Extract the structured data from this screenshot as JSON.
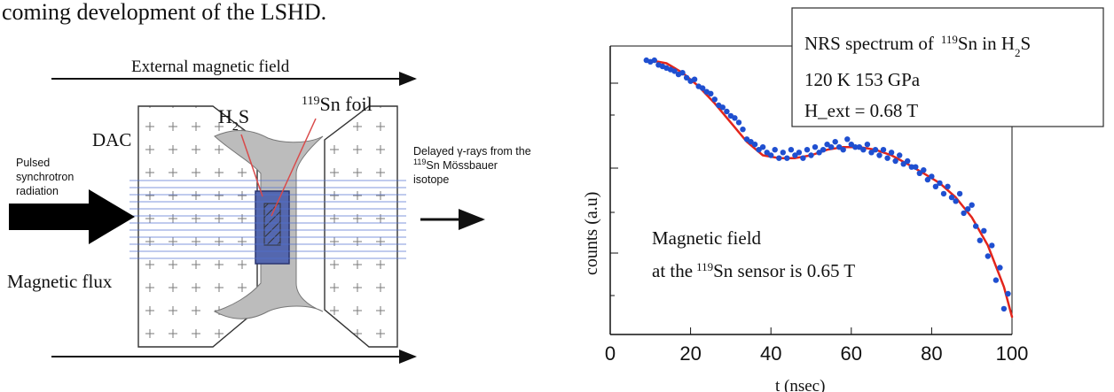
{
  "page_text": {
    "intro_fragment": "coming development of the LSHD."
  },
  "diagram": {
    "external_field_label": "External magnetic field",
    "sample_label_main": "H",
    "sample_label_sub": "2",
    "sample_label_end": "S",
    "foil_label_sup": "119",
    "foil_label_main": "Sn foil",
    "dac_label": "DAC",
    "source_line_1": "Pulsed",
    "source_line_2": "synchrotron",
    "source_line_3": "radiation",
    "delayed_line_1": "Delayed γ-rays from the",
    "delayed_line_2_sup": "119",
    "delayed_line_2_main": "Sn Mössbauer",
    "delayed_line_3": "isotope",
    "magnetic_flux_label": "Magnetic flux"
  },
  "inset_box": {
    "line1_prefix": "NRS spectrum of",
    "line1_sup": "119",
    "line1_mid": "Sn in H",
    "line1_sub": "2",
    "line1_end": "S",
    "line2": "120 K  153 GPa",
    "line3": "H_ext = 0.68 T"
  },
  "annotation": {
    "line1": "Magnetic field",
    "line2_prefix": "at the",
    "line2_sup": "119",
    "line2_suffix": "Sn sensor is 0.65 T"
  },
  "chart_data": {
    "type": "scatter",
    "xlabel": "t (nsec)",
    "ylabel": "counts (a.u)",
    "xlim": [
      0,
      100
    ],
    "y_scale": "log",
    "x_ticks": [
      0,
      20,
      40,
      60,
      80,
      100
    ],
    "x_tick_labels": [
      "0",
      "20",
      "40",
      "60",
      "80",
      "100"
    ],
    "colors": {
      "data": "#1f4fd0",
      "fit": "#e3251b"
    },
    "fit_curve": {
      "x": [
        10,
        14,
        18,
        22,
        26,
        30,
        34,
        38,
        42,
        46,
        50,
        54,
        58,
        62,
        66,
        70,
        74,
        78,
        82,
        86,
        90,
        94,
        98,
        100
      ],
      "y": [
        1.0,
        0.98,
        0.92,
        0.84,
        0.75,
        0.66,
        0.58,
        0.53,
        0.52,
        0.52,
        0.53,
        0.55,
        0.56,
        0.56,
        0.55,
        0.53,
        0.5,
        0.47,
        0.44,
        0.4,
        0.35,
        0.29,
        0.22,
        0.18
      ]
    },
    "data_points": {
      "x": [
        9,
        10,
        11,
        12,
        13,
        14,
        15,
        16,
        17,
        18,
        19,
        20,
        21,
        22,
        23,
        24,
        25,
        26,
        27,
        28,
        29,
        30,
        31,
        32,
        33,
        34,
        35,
        36,
        37,
        38,
        39,
        40,
        41,
        42,
        43,
        44,
        45,
        46,
        47,
        48,
        49,
        50,
        51,
        52,
        53,
        54,
        55,
        56,
        57,
        58,
        59,
        60,
        61,
        62,
        63,
        64,
        65,
        66,
        67,
        68,
        69,
        70,
        71,
        72,
        73,
        74,
        75,
        76,
        77,
        78,
        79,
        80,
        81,
        82,
        83,
        84,
        85,
        86,
        87,
        88,
        89,
        90,
        91,
        92,
        93,
        94,
        95,
        96,
        97,
        98,
        99
      ],
      "y": [
        1.0,
        0.99,
        1.0,
        0.97,
        0.96,
        0.95,
        0.94,
        0.93,
        0.91,
        0.92,
        0.89,
        0.87,
        0.88,
        0.84,
        0.83,
        0.81,
        0.8,
        0.77,
        0.74,
        0.73,
        0.71,
        0.69,
        0.68,
        0.66,
        0.63,
        0.59,
        0.58,
        0.57,
        0.55,
        0.56,
        0.54,
        0.53,
        0.55,
        0.52,
        0.54,
        0.52,
        0.55,
        0.53,
        0.54,
        0.52,
        0.55,
        0.53,
        0.56,
        0.54,
        0.55,
        0.57,
        0.56,
        0.58,
        0.56,
        0.55,
        0.59,
        0.57,
        0.56,
        0.56,
        0.55,
        0.57,
        0.54,
        0.55,
        0.53,
        0.55,
        0.52,
        0.54,
        0.51,
        0.53,
        0.5,
        0.51,
        0.49,
        0.49,
        0.47,
        0.48,
        0.45,
        0.46,
        0.43,
        0.44,
        0.41,
        0.43,
        0.4,
        0.39,
        0.41,
        0.36,
        0.37,
        0.38,
        0.33,
        0.3,
        0.32,
        0.27,
        0.29,
        0.23,
        0.25,
        0.19,
        0.21
      ]
    }
  }
}
